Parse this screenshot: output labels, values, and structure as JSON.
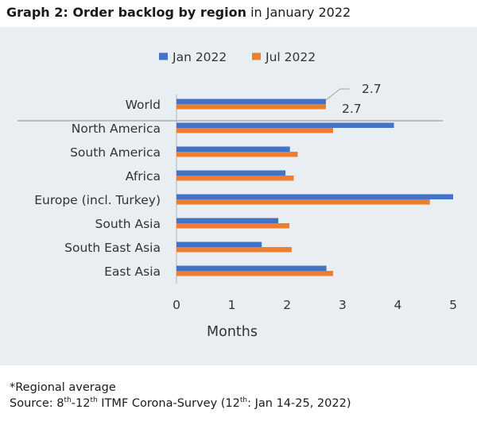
{
  "title": {
    "bold": "Graph 2: Order backlog by region",
    "rest": " in January 2022"
  },
  "colors": {
    "jan": "#4472c4",
    "jul": "#ed7d31",
    "panel": "#e9eef3"
  },
  "chart_data": {
    "type": "bar",
    "orientation": "horizontal",
    "categories": [
      "World",
      "North America",
      "South America",
      "Africa",
      "Europe (incl. Turkey)",
      "South Asia ",
      "South East Asia",
      "East Asia"
    ],
    "series": [
      {
        "name": "Jan 2022",
        "values": [
          2.7,
          3.93,
          2.05,
          1.97,
          5.0,
          1.84,
          1.54,
          2.71
        ]
      },
      {
        "name": "Jul 2022",
        "values": [
          2.7,
          2.83,
          2.19,
          2.12,
          4.58,
          2.04,
          2.08,
          2.83
        ]
      }
    ],
    "xlabel": "Months",
    "xticks": [
      0,
      1,
      2,
      3,
      4,
      5
    ],
    "xlim": [
      0,
      5
    ],
    "legend": "top",
    "grid": false,
    "annotations": [
      "2.7",
      "2.7"
    ]
  },
  "notes": {
    "line1": "*Regional average",
    "source_prefix": "Source: 8",
    "sup1": "th",
    "source_mid": "-12",
    "sup2": "th",
    "source_mid2": " ITMF Corona-Survey (12",
    "sup3": "th",
    "source_end": ": Jan 14-25, 2022)"
  }
}
